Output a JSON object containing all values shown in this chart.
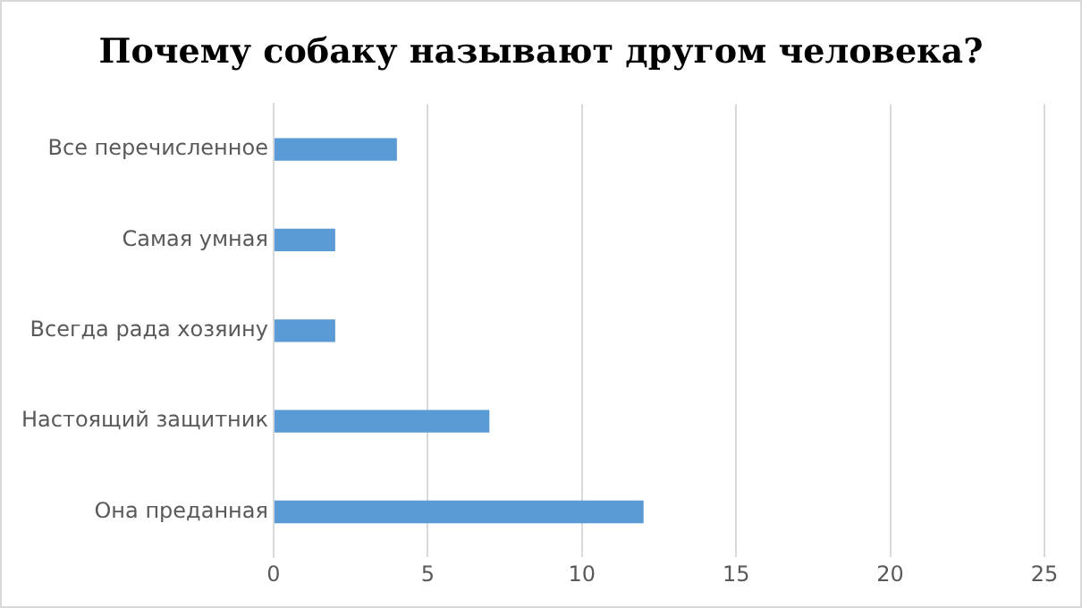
{
  "chart_data": {
    "type": "bar",
    "orientation": "horizontal",
    "title": "Почему собаку называют другом человека?",
    "categories": [
      "Все перечисленное",
      "Самая умная",
      "Всегда рада хозяину",
      "Настоящий защитник",
      "Она преданная"
    ],
    "values": [
      4,
      2,
      2,
      7,
      12
    ],
    "color": "#5b9bd5",
    "xlim": [
      0,
      25
    ],
    "xticks": [
      0,
      5,
      10,
      15,
      20,
      25
    ],
    "grid": "x",
    "legend": false
  }
}
